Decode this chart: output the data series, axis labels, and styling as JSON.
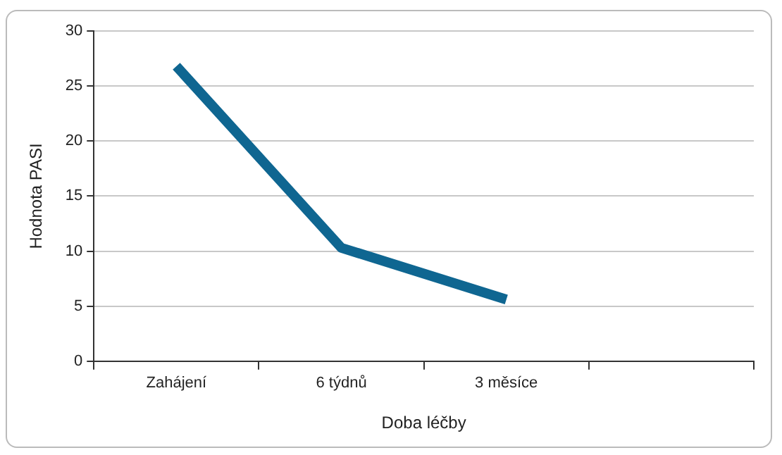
{
  "chart_data": {
    "type": "line",
    "xlabel": "Doba léčby",
    "ylabel": "Hodnota PASI",
    "categories": [
      "Zahájení",
      "6 týdnů",
      "3 měsíce",
      null
    ],
    "series": [
      {
        "color": "#0f6691",
        "values": [
          26.8,
          10.3,
          5.6,
          null
        ]
      }
    ],
    "ylim": [
      0,
      30
    ],
    "yticks": [
      0,
      5,
      10,
      15,
      20,
      25,
      30
    ],
    "grid": "y",
    "legend": false,
    "marker": "none",
    "line_style": "solid"
  }
}
